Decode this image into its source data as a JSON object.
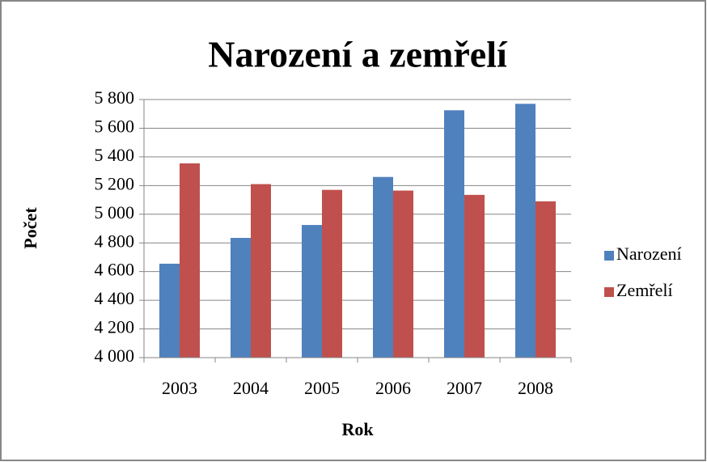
{
  "chart_data": {
    "type": "bar",
    "title": "Narození a zemřelí",
    "categories": [
      "2003",
      "2004",
      "2005",
      "2006",
      "2007",
      "2008"
    ],
    "series": [
      {
        "name": "Narození",
        "color": "#4f81bd",
        "values": [
          4655,
          4835,
          4925,
          5260,
          5725,
          5770
        ]
      },
      {
        "name": "Zemřelí",
        "color": "#c0504d",
        "values": [
          5355,
          5210,
          5170,
          5165,
          5135,
          5090
        ]
      }
    ],
    "ylim": [
      4000,
      5800
    ],
    "yticks": [
      {
        "value": 4000,
        "label": "4 000"
      },
      {
        "value": 4200,
        "label": "4 200"
      },
      {
        "value": 4400,
        "label": "4 400"
      },
      {
        "value": 4600,
        "label": "4 600"
      },
      {
        "value": 4800,
        "label": "4 800"
      },
      {
        "value": 5000,
        "label": "5 000"
      },
      {
        "value": 5200,
        "label": "5 200"
      },
      {
        "value": 5400,
        "label": "5 400"
      },
      {
        "value": 5600,
        "label": "5 600"
      },
      {
        "value": 5800,
        "label": "5 800"
      }
    ],
    "xlabel": "Rok",
    "ylabel": "Počet",
    "grid": true,
    "legend": "right"
  }
}
